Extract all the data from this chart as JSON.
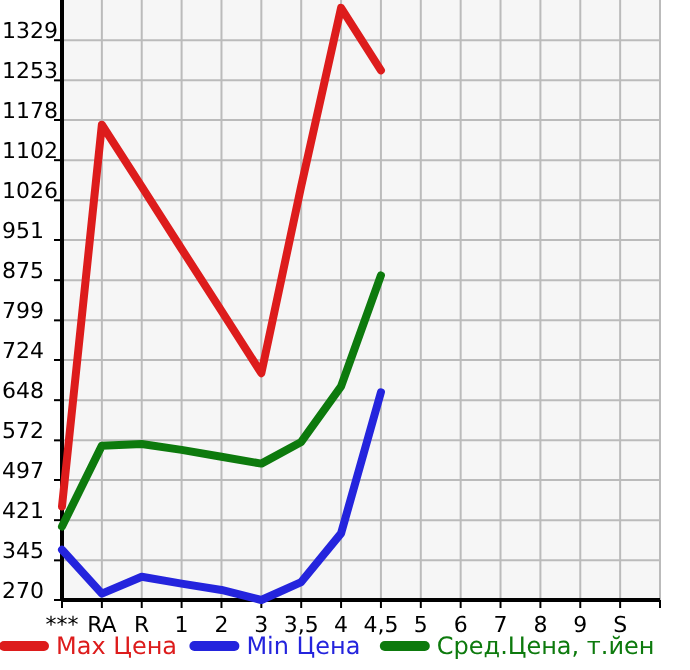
{
  "chart_data": {
    "type": "line",
    "categories": [
      "***",
      "RA",
      "R",
      "1",
      "2",
      "3",
      "3,5",
      "4",
      "4,5",
      "5",
      "6",
      "7",
      "8",
      "9",
      "S",
      null
    ],
    "series": [
      {
        "name": "Max Цена",
        "color": "#dd1c1c",
        "values": [
          447,
          1169,
          1052,
          934,
          817,
          699,
          1053,
          1390,
          1272,
          null,
          null,
          null,
          null,
          null,
          null,
          null
        ]
      },
      {
        "name": "Min Цена",
        "color": "#2424dd",
        "values": [
          365,
          282,
          314,
          301,
          289,
          270,
          304,
          396,
          663,
          null,
          null,
          null,
          null,
          null,
          null,
          null
        ]
      },
      {
        "name": "Сред.Цена, т.йен",
        "color": "#0d7a0d",
        "values": [
          409,
          562,
          565,
          554,
          541,
          528,
          569,
          674,
          884,
          null,
          null,
          null,
          null,
          null,
          null,
          null
        ]
      }
    ],
    "ylim": [
      270,
      1405
    ],
    "yticks": [
      270,
      345,
      421,
      497,
      572,
      648,
      724,
      799,
      875,
      951,
      1026,
      1102,
      1178,
      1253,
      1329
    ],
    "grid": true,
    "legend": "bottom",
    "marker": "none",
    "line_style": "solid"
  }
}
